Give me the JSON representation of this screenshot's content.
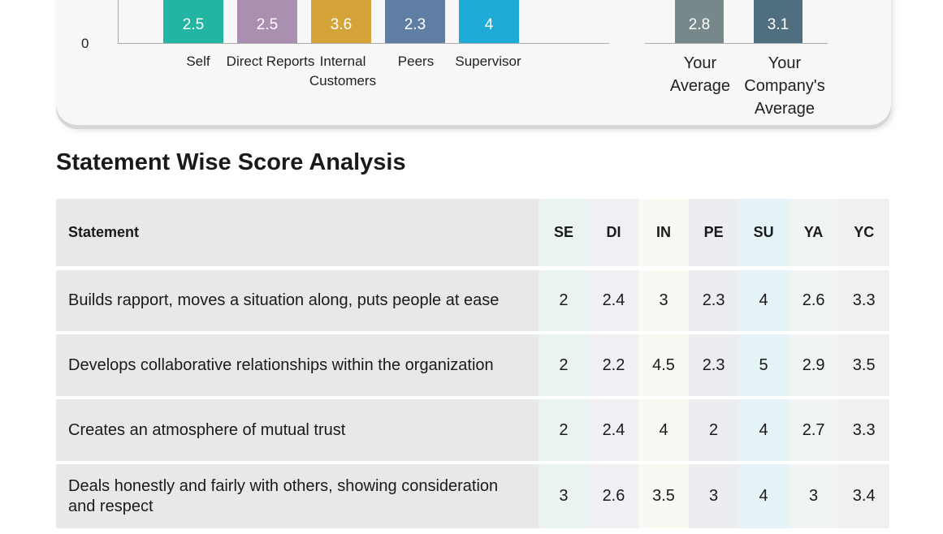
{
  "chart": {
    "zero_label": "0",
    "group_bars": [
      {
        "value": "2.5",
        "label": "Self",
        "color": "#22b5a3"
      },
      {
        "value": "2.5",
        "label": "Direct Reports",
        "color": "#ab8fb0"
      },
      {
        "value": "3.6",
        "label": "Internal Customers",
        "color": "#d4a43a"
      },
      {
        "value": "2.3",
        "label": "Peers",
        "color": "#5e7fa3"
      },
      {
        "value": "4",
        "label": "Supervisor",
        "color": "#1cacd7"
      }
    ],
    "avg_bars": [
      {
        "value": "2.8",
        "label": "Your Average",
        "color": "#77888a"
      },
      {
        "value": "3.1",
        "label": "Your Company's Average",
        "color": "#4f6e80"
      }
    ]
  },
  "section": {
    "title": "Statement Wise Score Analysis"
  },
  "table": {
    "headers": [
      "Statement",
      "SE",
      "DI",
      "IN",
      "PE",
      "SU",
      "YA",
      "YC"
    ],
    "rows": [
      [
        "Builds rapport, moves a situation along, puts people at ease",
        "2",
        "2.4",
        "3",
        "2.3",
        "4",
        "2.6",
        "3.3"
      ],
      [
        "Develops collaborative relationships within the organization",
        "2",
        "2.2",
        "4.5",
        "2.3",
        "5",
        "2.9",
        "3.5"
      ],
      [
        "Creates an atmosphere of mutual trust",
        "2",
        "2.4",
        "4",
        "2",
        "4",
        "2.7",
        "3.3"
      ],
      [
        "Deals honestly and fairly with others, showing consideration and respect",
        "3",
        "2.6",
        "3.5",
        "3",
        "4",
        "3",
        "3.4"
      ]
    ]
  }
}
